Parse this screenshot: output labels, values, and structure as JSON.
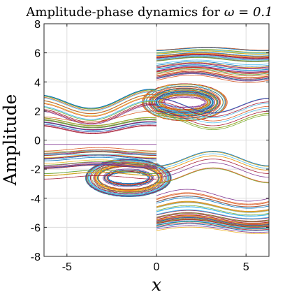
{
  "chart_data": {
    "type": "line",
    "title": "Amplitude-phase dynamics for ",
    "title_symbol": "ω = 0.1",
    "xlabel": "x",
    "ylabel": "Amplitude",
    "xlim": [
      -6.28,
      6.28
    ],
    "ylim": [
      -8,
      8
    ],
    "xticks": [
      -5,
      0,
      5
    ],
    "yticks": [
      -8,
      -6,
      -4,
      -2,
      0,
      2,
      4,
      6,
      8
    ],
    "grid": true,
    "legend": "none",
    "omega": 0.1,
    "palette": [
      "#0072bd",
      "#d95319",
      "#edb120",
      "#7e2f8e",
      "#77ac30",
      "#4dbeee",
      "#a2142f"
    ],
    "series_groups": [
      {
        "family": "closed orbits around center",
        "center": [
          1.57,
          2.6
        ],
        "radius_x": [
          1.1,
          2.4
        ],
        "radius_y": [
          0.35,
          1.3
        ],
        "count": 38
      },
      {
        "family": "closed orbits around center",
        "center": [
          -1.57,
          -2.6
        ],
        "radius_x": [
          1.1,
          2.4
        ],
        "radius_y": [
          0.35,
          1.3
        ],
        "count": 38
      },
      {
        "family": "upper bundle, x>0",
        "y_range": [
          4.2,
          6.3
        ],
        "count": 44
      },
      {
        "family": "lower bundle, x>0",
        "y_range": [
          -6.3,
          -3.8
        ],
        "count": 44
      },
      {
        "family": "upper band, x<0",
        "y_range": [
          0.6,
          2.6
        ],
        "count": 34
      },
      {
        "family": "lower band, x<0",
        "y_range": [
          -2.6,
          -0.6
        ],
        "count": 30
      },
      {
        "family": "right band between orbits",
        "y_range": [
          1.2,
          2.4
        ],
        "count": 10
      },
      {
        "family": "right band between orbits",
        "y_range": [
          -2.6,
          -1.2
        ],
        "count": 10
      },
      {
        "family": "flat lines",
        "values": [
          -0.3,
          -0.8,
          -1.0
        ]
      }
    ]
  }
}
